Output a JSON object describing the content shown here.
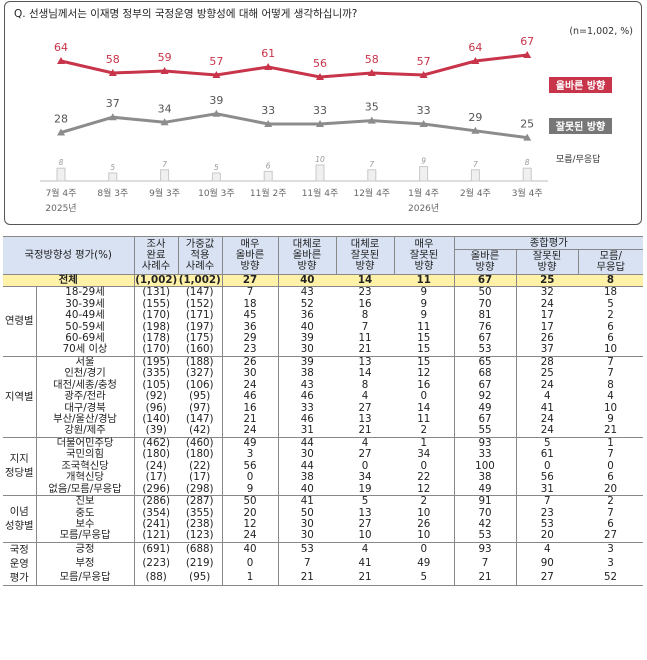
{
  "question": "Q. 선생님께서는 이재명 정부의 국정운영 방향성에 대해 어떻게 생각하십니까?",
  "note": "(n=1,002, %)",
  "chart_data": {
    "type": "line",
    "x": [
      "7월 4주",
      "8월 3주",
      "9월 3주",
      "10월 3주",
      "11월 2주",
      "11월 4주",
      "12월 4주",
      "1월 4주",
      "2월 4주",
      "3월 4주"
    ],
    "year_labels": {
      "0": "2025년",
      "7": "2026년"
    },
    "series": [
      {
        "name": "올바른 방향",
        "values": [
          64,
          58,
          59,
          57,
          61,
          56,
          58,
          57,
          64,
          67
        ],
        "color": "#c8344a"
      },
      {
        "name": "잘못된 방향",
        "values": [
          28,
          37,
          34,
          39,
          33,
          33,
          35,
          33,
          29,
          25
        ],
        "color": "#8c8c8c"
      },
      {
        "name": "모름/무응답",
        "values": [
          8,
          5,
          7,
          5,
          6,
          10,
          7,
          9,
          7,
          8
        ],
        "color": "#d0d0d0"
      }
    ]
  },
  "table": {
    "header": {
      "label": "국정방향성 평가(%)",
      "sample_n": "조사\n완료\n사례수",
      "weighted_n": "가중값\n적용\n사례수",
      "very_right": "매우\n올바른\n방향",
      "mostly_right": "대체로\n올바른\n방향",
      "mostly_wrong": "대체로\n잘못된\n방향",
      "very_wrong": "매우\n잘못된\n방향",
      "summary": "종합평가",
      "sum_right": "올바른\n방향",
      "sum_wrong": "잘못된\n방향",
      "sum_dk": "모름/\n무응답"
    },
    "total": {
      "label": "전체",
      "values": [
        "(1,002)",
        "(1,002)",
        "27",
        "40",
        "14",
        "11",
        "67",
        "25",
        "8"
      ]
    },
    "groups": [
      {
        "name": "연령별",
        "rows": [
          {
            "label": "18-29세",
            "values": [
              "(131)",
              "(147)",
              "7",
              "43",
              "23",
              "9",
              "50",
              "32",
              "18"
            ]
          },
          {
            "label": "30-39세",
            "values": [
              "(155)",
              "(152)",
              "18",
              "52",
              "16",
              "9",
              "70",
              "24",
              "5"
            ]
          },
          {
            "label": "40-49세",
            "values": [
              "(170)",
              "(171)",
              "45",
              "36",
              "8",
              "9",
              "81",
              "17",
              "2"
            ]
          },
          {
            "label": "50-59세",
            "values": [
              "(198)",
              "(197)",
              "36",
              "40",
              "7",
              "11",
              "76",
              "17",
              "6"
            ]
          },
          {
            "label": "60-69세",
            "values": [
              "(178)",
              "(175)",
              "29",
              "39",
              "11",
              "15",
              "67",
              "26",
              "6"
            ]
          },
          {
            "label": "70세 이상",
            "values": [
              "(170)",
              "(160)",
              "23",
              "30",
              "21",
              "15",
              "53",
              "37",
              "10"
            ]
          }
        ]
      },
      {
        "name": "지역별",
        "rows": [
          {
            "label": "서울",
            "values": [
              "(195)",
              "(188)",
              "26",
              "39",
              "13",
              "15",
              "65",
              "28",
              "7"
            ]
          },
          {
            "label": "인천/경기",
            "values": [
              "(335)",
              "(327)",
              "30",
              "38",
              "14",
              "12",
              "68",
              "25",
              "7"
            ]
          },
          {
            "label": "대전/세종/충청",
            "values": [
              "(105)",
              "(106)",
              "24",
              "43",
              "8",
              "16",
              "67",
              "24",
              "8"
            ]
          },
          {
            "label": "광주/전라",
            "values": [
              "(92)",
              "(95)",
              "46",
              "46",
              "4",
              "0",
              "92",
              "4",
              "4"
            ]
          },
          {
            "label": "대구/경북",
            "values": [
              "(96)",
              "(97)",
              "16",
              "33",
              "27",
              "14",
              "49",
              "41",
              "10"
            ]
          },
          {
            "label": "부산/울산/경남",
            "values": [
              "(140)",
              "(147)",
              "21",
              "46",
              "13",
              "11",
              "67",
              "24",
              "9"
            ]
          },
          {
            "label": "강원/제주",
            "values": [
              "(39)",
              "(42)",
              "24",
              "31",
              "21",
              "2",
              "55",
              "24",
              "21"
            ]
          }
        ]
      },
      {
        "name": "지지\n정당별",
        "rows": [
          {
            "label": "더불어민주당",
            "values": [
              "(462)",
              "(460)",
              "49",
              "44",
              "4",
              "1",
              "93",
              "5",
              "1"
            ]
          },
          {
            "label": "국민의힘",
            "values": [
              "(180)",
              "(180)",
              "3",
              "30",
              "27",
              "34",
              "33",
              "61",
              "7"
            ]
          },
          {
            "label": "조국혁신당",
            "values": [
              "(24)",
              "(22)",
              "56",
              "44",
              "0",
              "0",
              "100",
              "0",
              "0"
            ]
          },
          {
            "label": "개혁신당",
            "values": [
              "(17)",
              "(17)",
              "0",
              "38",
              "34",
              "22",
              "38",
              "56",
              "6"
            ]
          },
          {
            "label": "없음/모름/무응답",
            "values": [
              "(296)",
              "(298)",
              "9",
              "40",
              "19",
              "12",
              "49",
              "31",
              "20"
            ]
          }
        ]
      },
      {
        "name": "이념\n성향별",
        "rows": [
          {
            "label": "진보",
            "values": [
              "(286)",
              "(287)",
              "50",
              "41",
              "5",
              "2",
              "91",
              "7",
              "2"
            ]
          },
          {
            "label": "중도",
            "values": [
              "(354)",
              "(355)",
              "20",
              "50",
              "13",
              "10",
              "70",
              "23",
              "7"
            ]
          },
          {
            "label": "보수",
            "values": [
              "(241)",
              "(238)",
              "12",
              "30",
              "27",
              "26",
              "42",
              "53",
              "6"
            ]
          },
          {
            "label": "모름/무응답",
            "values": [
              "(121)",
              "(123)",
              "24",
              "30",
              "10",
              "10",
              "53",
              "20",
              "27"
            ]
          }
        ]
      },
      {
        "name": "국정\n운영\n평가",
        "rows": [
          {
            "label": "긍정",
            "values": [
              "(691)",
              "(688)",
              "40",
              "53",
              "4",
              "0",
              "93",
              "4",
              "3"
            ]
          },
          {
            "label": "부정",
            "values": [
              "(223)",
              "(219)",
              "0",
              "7",
              "41",
              "49",
              "7",
              "90",
              "3"
            ]
          },
          {
            "label": "모름/무응답",
            "values": [
              "(88)",
              "(95)",
              "1",
              "21",
              "21",
              "5",
              "21",
              "27",
              "52"
            ]
          }
        ]
      }
    ]
  }
}
